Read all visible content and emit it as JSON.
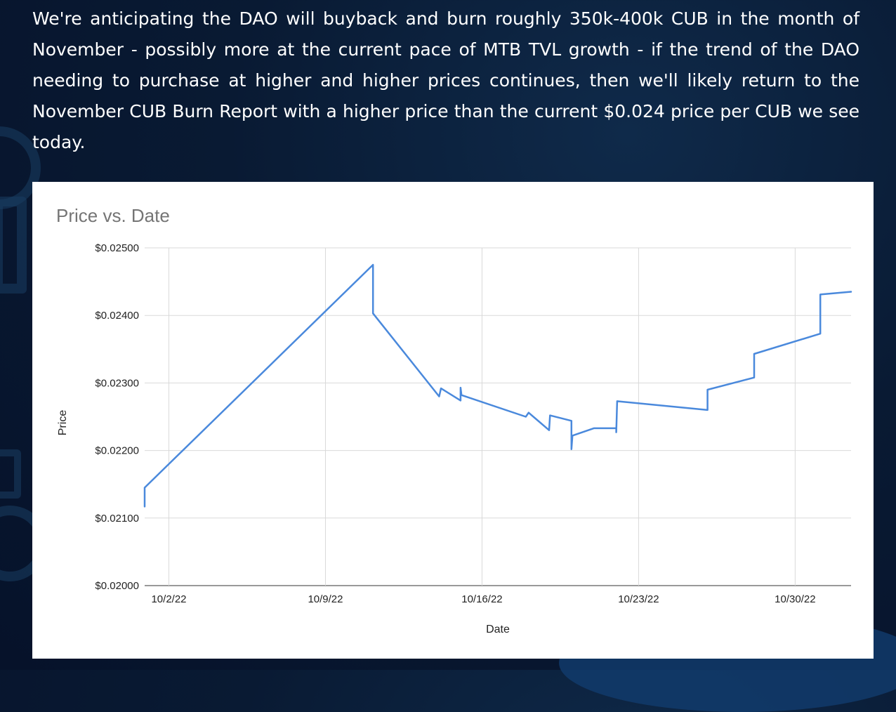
{
  "intro_text": "We're anticipating the DAO will buyback and burn roughly 350k-400k CUB in the month of November - possibly more at the current pace of MTB TVL growth - if the trend of the DAO needing to purchase at higher and higher prices continues, then we'll likely return to the November CUB Burn Report with a higher price than the current $0.024 price per CUB we see today.",
  "chart_data": {
    "type": "line",
    "title": "Price vs. Date",
    "xlabel": "Date",
    "ylabel": "Price",
    "ylim": [
      0.02,
      0.025
    ],
    "y_ticks": [
      0.02,
      0.021,
      0.022,
      0.023,
      0.024,
      0.025
    ],
    "y_tick_labels": [
      "$0.02000",
      "$0.02100",
      "$0.02200",
      "$0.02300",
      "$0.02400",
      "$0.02500"
    ],
    "xlim": [
      "2022-09-30 22:00",
      "2022-11-01 12:00"
    ],
    "x_ticks": [
      "2022-10-02",
      "2022-10-09",
      "2022-10-16",
      "2022-10-23",
      "2022-10-30"
    ],
    "x_tick_labels": [
      "10/2/22",
      "10/9/22",
      "10/16/22",
      "10/23/22",
      "10/30/22"
    ],
    "grid": true,
    "legend": "none",
    "series": [
      {
        "color": "#4a89dc",
        "points": [
          {
            "x": "2022-09-30 22:00",
            "y": 0.02117
          },
          {
            "x": "2022-09-30 22:00",
            "y": 0.02145
          },
          {
            "x": "2022-10-11 03:00",
            "y": 0.02475
          },
          {
            "x": "2022-10-11 03:00",
            "y": 0.02403
          },
          {
            "x": "2022-10-14 02:00",
            "y": 0.0228
          },
          {
            "x": "2022-10-14 04:00",
            "y": 0.02292
          },
          {
            "x": "2022-10-15 01:00",
            "y": 0.02274
          },
          {
            "x": "2022-10-15 01:00",
            "y": 0.02293
          },
          {
            "x": "2022-10-15 02:00",
            "y": 0.02282
          },
          {
            "x": "2022-10-17 23:00",
            "y": 0.0225
          },
          {
            "x": "2022-10-18 02:00",
            "y": 0.02256
          },
          {
            "x": "2022-10-19 00:00",
            "y": 0.0223
          },
          {
            "x": "2022-10-19 01:00",
            "y": 0.02252
          },
          {
            "x": "2022-10-20 00:00",
            "y": 0.02244
          },
          {
            "x": "2022-10-20 00:00",
            "y": 0.02202
          },
          {
            "x": "2022-10-20 01:00",
            "y": 0.02222
          },
          {
            "x": "2022-10-21 00:00",
            "y": 0.02233
          },
          {
            "x": "2022-10-22 00:00",
            "y": 0.02233
          },
          {
            "x": "2022-10-22 00:00",
            "y": 0.02227
          },
          {
            "x": "2022-10-22 01:00",
            "y": 0.02273
          },
          {
            "x": "2022-10-26 02:00",
            "y": 0.0226
          },
          {
            "x": "2022-10-26 02:00",
            "y": 0.0229
          },
          {
            "x": "2022-10-28 04:00",
            "y": 0.02308
          },
          {
            "x": "2022-10-28 04:00",
            "y": 0.02343
          },
          {
            "x": "2022-10-31 03:00",
            "y": 0.02373
          },
          {
            "x": "2022-10-31 03:00",
            "y": 0.02431
          },
          {
            "x": "2022-11-01 12:00",
            "y": 0.02435
          }
        ]
      }
    ]
  }
}
